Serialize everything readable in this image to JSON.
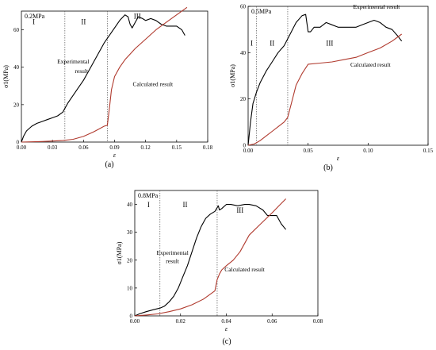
{
  "chart_data": [
    {
      "type": "line",
      "panel_label": "(a)",
      "pressure_label": "0.2MPa",
      "xlabel": "ε",
      "ylabel": "σ1(MPa)",
      "xlim": [
        0,
        0.18
      ],
      "ylim": [
        0,
        70
      ],
      "x_ticks": [
        "0.00",
        "0.03",
        "0.06",
        "0.09",
        "0.12",
        "0.15",
        "0.18"
      ],
      "y_ticks": [
        "0",
        "20",
        "40",
        "60"
      ],
      "stage_dividers": [
        0.042,
        0.083
      ],
      "stages": [
        {
          "label": "I",
          "x": 0.012,
          "y": 63
        },
        {
          "label": "II",
          "x": 0.06,
          "y": 63
        },
        {
          "label": "III",
          "x": 0.112,
          "y": 66
        }
      ],
      "series": [
        {
          "name": "Experimental result",
          "color": "#000000",
          "x": [
            0,
            0.002,
            0.005,
            0.01,
            0.015,
            0.02,
            0.025,
            0.03,
            0.035,
            0.04,
            0.045,
            0.05,
            0.055,
            0.06,
            0.065,
            0.07,
            0.075,
            0.08,
            0.085,
            0.09,
            0.095,
            0.1,
            0.103,
            0.105,
            0.107,
            0.11,
            0.113,
            0.117,
            0.12,
            0.125,
            0.13,
            0.135,
            0.14,
            0.145,
            0.15,
            0.155,
            0.158
          ],
          "y": [
            0,
            3,
            6,
            8.5,
            10,
            11,
            12,
            13,
            14,
            16,
            21,
            25,
            29,
            33,
            38,
            43,
            48,
            53,
            57,
            61,
            65,
            68,
            67,
            63,
            61,
            64,
            67,
            66,
            65,
            66,
            65,
            63,
            62,
            62,
            62,
            60,
            57
          ]
        },
        {
          "name": "Calculated result",
          "color": "#b03a2e",
          "x": [
            0,
            0.02,
            0.04,
            0.05,
            0.06,
            0.07,
            0.08,
            0.083,
            0.085,
            0.087,
            0.09,
            0.095,
            0.1,
            0.11,
            0.12,
            0.13,
            0.14,
            0.15,
            0.16
          ],
          "y": [
            0,
            0.3,
            0.8,
            1.5,
            3,
            5.5,
            8.5,
            9,
            18,
            28,
            35,
            40,
            44,
            50,
            55,
            60,
            64,
            68,
            72
          ]
        }
      ],
      "annotations": [
        {
          "text": "Experimental",
          "x": 0.05,
          "y": 42
        },
        {
          "text": "result",
          "x": 0.058,
          "y": 37
        },
        {
          "text": "Calculated result",
          "x": 0.127,
          "y": 30
        }
      ]
    },
    {
      "type": "line",
      "panel_label": "(b)",
      "pressure_label": "0.5MPa",
      "xlabel": "ε",
      "ylabel": "σ1(MPa)",
      "xlim": [
        0,
        0.15
      ],
      "ylim": [
        0,
        60
      ],
      "x_ticks": [
        "0.00",
        "0.05",
        "0.10",
        "0.15"
      ],
      "y_ticks": [
        "0",
        "20",
        "40",
        "60"
      ],
      "stage_dividers": [
        0.007,
        0.033
      ],
      "stages": [
        {
          "label": "I",
          "x": 0.003,
          "y": 43
        },
        {
          "label": "II",
          "x": 0.02,
          "y": 43
        },
        {
          "label": "III",
          "x": 0.068,
          "y": 43
        }
      ],
      "series": [
        {
          "name": "Experimental result",
          "color": "#000000",
          "x": [
            0,
            0.001,
            0.002,
            0.004,
            0.007,
            0.01,
            0.015,
            0.02,
            0.025,
            0.03,
            0.035,
            0.04,
            0.045,
            0.048,
            0.05,
            0.052,
            0.055,
            0.06,
            0.065,
            0.07,
            0.075,
            0.08,
            0.085,
            0.09,
            0.095,
            0.1,
            0.105,
            0.11,
            0.115,
            0.12,
            0.125,
            0.128
          ],
          "y": [
            0,
            5,
            10,
            18,
            23,
            27,
            32,
            36,
            40,
            43,
            48,
            53,
            56,
            56.5,
            49,
            49,
            51,
            51,
            53,
            52,
            51,
            51,
            51,
            51,
            52,
            53,
            54,
            53,
            51,
            50,
            47,
            45
          ]
        },
        {
          "name": "Calculated result",
          "color": "#b03a2e",
          "x": [
            0,
            0.005,
            0.01,
            0.015,
            0.02,
            0.025,
            0.03,
            0.033,
            0.036,
            0.04,
            0.045,
            0.05,
            0.06,
            0.07,
            0.08,
            0.09,
            0.1,
            0.11,
            0.12,
            0.128
          ],
          "y": [
            0,
            0.5,
            2,
            4,
            6,
            8,
            10,
            12,
            18,
            26,
            31,
            35,
            35.5,
            36,
            37,
            38,
            40,
            42,
            45,
            48
          ]
        }
      ],
      "annotations": [
        {
          "text": "Experimental result",
          "x": 0.107,
          "y": 59
        },
        {
          "text": "Calculated result",
          "x": 0.102,
          "y": 34
        }
      ]
    },
    {
      "type": "line",
      "panel_label": "(c)",
      "pressure_label": "0.8MPa",
      "xlabel": "ε",
      "ylabel": "σ1(MPa)",
      "xlim": [
        0,
        0.08
      ],
      "ylim": [
        0,
        45
      ],
      "x_ticks": [
        "0.00",
        "0.02",
        "0.04",
        "0.06",
        "0.08"
      ],
      "y_ticks": [
        "0",
        "10",
        "20",
        "30",
        "40"
      ],
      "stage_dividers": [
        0.011,
        0.036
      ],
      "stages": [
        {
          "label": "I",
          "x": 0.006,
          "y": 39
        },
        {
          "label": "II",
          "x": 0.022,
          "y": 39
        },
        {
          "label": "III",
          "x": 0.046,
          "y": 37
        }
      ],
      "series": [
        {
          "name": "Experimental result",
          "color": "#000000",
          "x": [
            0,
            0.002,
            0.005,
            0.008,
            0.011,
            0.013,
            0.015,
            0.017,
            0.019,
            0.021,
            0.023,
            0.025,
            0.027,
            0.029,
            0.031,
            0.033,
            0.035,
            0.0365,
            0.037,
            0.038,
            0.04,
            0.042,
            0.045,
            0.048,
            0.05,
            0.053,
            0.056,
            0.058,
            0.06,
            0.062,
            0.064,
            0.066
          ],
          "y": [
            0,
            0.7,
            1.5,
            2.2,
            2.8,
            3.5,
            5,
            7,
            10,
            14,
            18,
            23,
            28,
            32,
            35,
            36.5,
            37.5,
            39.5,
            38,
            38.5,
            40,
            40,
            39.5,
            40,
            40,
            39.5,
            38,
            36,
            36,
            36,
            33,
            31
          ]
        },
        {
          "name": "Calculated result",
          "color": "#b03a2e",
          "x": [
            0,
            0.005,
            0.01,
            0.015,
            0.02,
            0.025,
            0.03,
            0.035,
            0.036,
            0.037,
            0.038,
            0.04,
            0.043,
            0.046,
            0.05,
            0.055,
            0.06,
            0.063,
            0.066
          ],
          "y": [
            0,
            0.3,
            0.7,
            1.5,
            2.5,
            4,
            6,
            9,
            13,
            15,
            16.5,
            18,
            20,
            23,
            29,
            33,
            37,
            39.5,
            42
          ]
        }
      ],
      "annotations": [
        {
          "text": "Experimental",
          "x": 0.0165,
          "y": 22
        },
        {
          "text": "result",
          "x": 0.0165,
          "y": 19
        },
        {
          "text": "Calculated result",
          "x": 0.048,
          "y": 16
        }
      ]
    }
  ]
}
